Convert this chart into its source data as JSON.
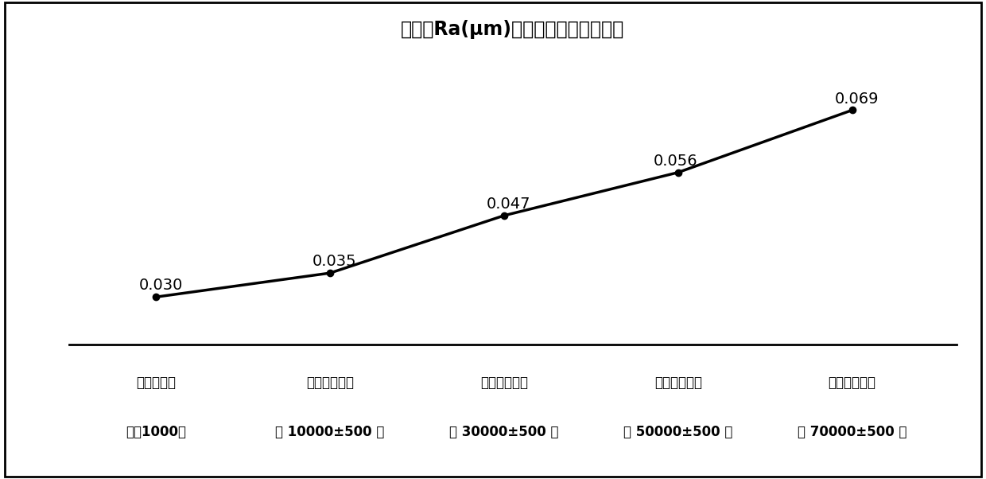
{
  "title": "粗糙度Ra(μm)与酸腐蚀液寿命的关系",
  "x_positions": [
    0,
    1,
    2,
    3,
    4
  ],
  "y_values": [
    0.03,
    0.035,
    0.047,
    0.056,
    0.069
  ],
  "y_labels": [
    "0.030",
    "0.035",
    "0.047",
    "0.056",
    "0.069"
  ],
  "x_tick_labels_line1": [
    "加工硅片数",
    "加工硅片数量",
    "加工硅片数量",
    "加工硅片数量",
    "加工硅片数量"
  ],
  "x_tick_labels_line2": [
    "量＜1000片",
    "为 10000±500 片",
    "为 30000±500 片",
    "为 50000±500 片",
    "为 70000±500 片"
  ],
  "line_color": "#000000",
  "marker_color": "#000000",
  "background_color": "#ffffff",
  "title_fontsize": 17,
  "label_fontsize": 12,
  "annotation_fontsize": 14,
  "line_width": 2.5,
  "marker_size": 6,
  "border_color": "#000000",
  "border_width": 2.0
}
